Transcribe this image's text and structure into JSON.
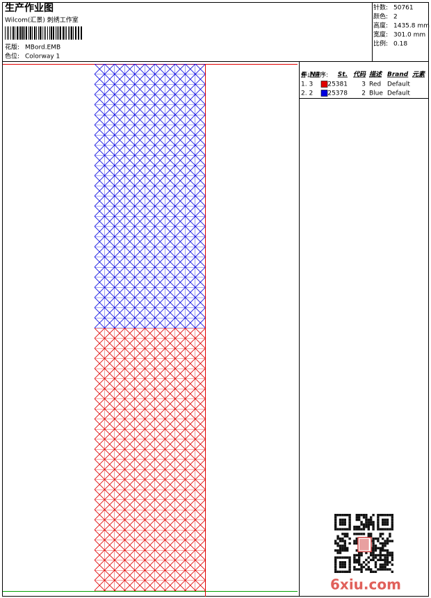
{
  "header": {
    "title": "生产作业图",
    "studio": "Wilcom(汇景) 刺绣工作室",
    "design": {
      "label": "花版:",
      "value": "MBord.EMB"
    },
    "colorway": {
      "label": "色位:",
      "value": "Colorway 1"
    }
  },
  "stats": [
    {
      "label": "针数:",
      "value": "50761"
    },
    {
      "label": "颜色:",
      "value": "2"
    },
    {
      "label": "高度:",
      "value": "1435.8 mm"
    },
    {
      "label": "宽度:",
      "value": "301.0 mm"
    },
    {
      "label": "比例:",
      "value": "0.18"
    }
  ],
  "stop_sequence": {
    "title": "停止顺序:",
    "columns": [
      "#",
      "N#",
      "St.",
      "代码",
      "描述",
      "Brand",
      "元素"
    ],
    "rows": [
      {
        "seq": "1. 3",
        "color": "#e00000",
        "stitches": 25381,
        "code": 3,
        "description": "Red",
        "brand": "Default"
      },
      {
        "seq": "2. 2",
        "color": "#0000e0",
        "stitches": 25378,
        "code": 2,
        "description": "Blue",
        "brand": "Default"
      }
    ]
  },
  "watermark": "6xiu.com"
}
